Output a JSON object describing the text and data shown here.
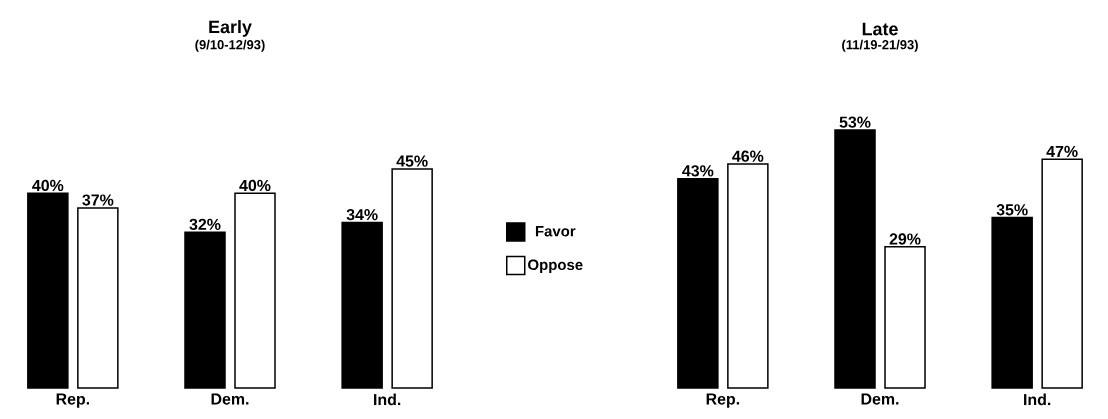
{
  "chart_data": [
    {
      "type": "bar",
      "title": "Early",
      "subtitle": "(9/10-12/93)",
      "categories": [
        "Rep.",
        "Dem.",
        "Ind."
      ],
      "legend": "right",
      "series": [
        {
          "name": "Favor",
          "color": "#000000",
          "values": [
            40,
            32,
            34
          ],
          "value_labels": [
            "40%",
            "32%",
            "34%"
          ]
        },
        {
          "name": "Oppose",
          "color": "#ffffff",
          "values": [
            37,
            40,
            45
          ],
          "value_labels": [
            "37%",
            "40%",
            "45%"
          ]
        }
      ]
    },
    {
      "type": "bar",
      "title": "Late",
      "subtitle": "(11/19-21/93)",
      "categories": [
        "Rep.",
        "Dem.",
        "Ind."
      ],
      "series": [
        {
          "color": "#000000",
          "values": [
            43,
            53,
            35
          ],
          "value_labels": [
            "43%",
            "53%",
            "35%"
          ]
        },
        {
          "color": "#ffffff",
          "values": [
            46,
            29,
            47
          ],
          "value_labels": [
            "46%",
            "29%",
            "47%"
          ]
        }
      ]
    }
  ]
}
